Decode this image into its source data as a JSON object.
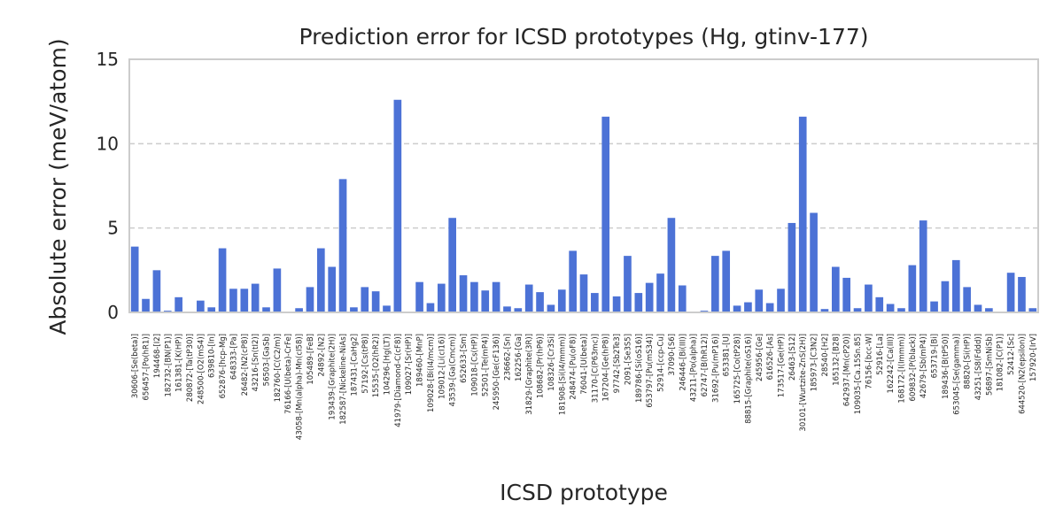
{
  "chart_data": {
    "type": "bar",
    "title": "Prediction error for ICSD prototypes (Hg, gtinv-177)",
    "xlabel": "ICSD prototype",
    "ylabel": "Absolute error (meV/atom)",
    "ylim": [
      0,
      15
    ],
    "yticks": [
      0,
      5,
      10,
      15
    ],
    "grid": "y-dashed",
    "bar_color": "#4c72d6",
    "categories": [
      "30606-[Se(beta)]",
      "656457-[Po(hR1)]",
      "194468-[I2]",
      "182732-[BN(P1)]",
      "161381-[K(HP)]",
      "280872-[Ta(tP30)]",
      "248500-[O2(mS4)]",
      "639810-[In]",
      "652876-[hcp-Mg]",
      "648333-[Pa]",
      "26482-[N2(cP8)]",
      "43216-[Sn(tI2)]",
      "56503-[GaSb]",
      "182760-[C(C2/m)]",
      "76166-[U(beta)-CrFe]",
      "43058-[Mn(alpha)-Mn(cI58)]",
      "105489-[FeB]",
      "24892-[N2]",
      "193439-[Graphite(2H)]",
      "182587-[Nickeline-NiAs]",
      "187431-[CaHg2]",
      "57192-[Cs(tP8)]",
      "15535-[O2(hR2)]",
      "104296-[Hg(LT)]",
      "41979-[Diamond-C(cF8)]",
      "109027-[Sr(HP)]",
      "189460-[MnP]",
      "109028-[Bi(I4/mcm)]",
      "109012-[Li(cI16)]",
      "43539-[Ga(Cmcm)]",
      "652633-[Sm]",
      "109018-[Cs(HP)]",
      "52501-[Te(mP4)]",
      "245950-[Ge(cF136)]",
      "236662-[Sn]",
      "162256-[Ga]",
      "31829-[Graphite(3R)]",
      "108682-[Pr(hP6)]",
      "108326-[Cr3Si]",
      "181908-[Si(I4/mmm)]",
      "248474-[Pu(oF8)]",
      "76041-[U(beta)]",
      "31170-[C(P63mc)]",
      "167204-[Ge(hP8)]",
      "97742-[Sb2Te3]",
      "2091-[Se3S5]",
      "189786-[Si(oS16)]",
      "653797-[Pu(mS34)]",
      "52914-[ccp-Cu]",
      "37090-[S6]",
      "246446-[Bi(III)]",
      "43211-[Po(alpha)]",
      "62747-[B(hR12)]",
      "31692-[Pu(mP16)]",
      "653381-[U]",
      "165725-[Co(tP28)]",
      "88815-[Graphite(oS16)]",
      "245956-[Ge]",
      "616526-[As]",
      "173517-[Ge(HP)]",
      "26463-[S12]",
      "30101-[Wurtzite-ZnS(2H)]",
      "185973-[C3N2]",
      "28540-[H2]",
      "165132-[B28]",
      "642937-[Mn(cP20)]",
      "109035-[Ca.15Sn.85]",
      "76156-[bcc-W]",
      "52916-[La]",
      "162242-[Ca(III)]",
      "168172-[I(Immm)]",
      "609832-[P(black)]",
      "42679-[Sb(mP4)]",
      "653719-[Bi]",
      "189436-[B(tP50)]",
      "653045-[Se(gamma)]",
      "88820-[Si(HP)]",
      "43251-[S8(Fddd)]",
      "56897-[SmNiSb]",
      "181082-[C(P1)]",
      "52412-[Sc]",
      "644520-[N2(epsilon)]",
      "157920-[IrV]"
    ],
    "values": [
      3.9,
      0.8,
      2.5,
      0.1,
      0.9,
      0.05,
      0.7,
      0.3,
      3.8,
      1.4,
      1.4,
      1.7,
      0.3,
      2.6,
      0.05,
      0.25,
      1.5,
      3.8,
      2.7,
      7.9,
      0.3,
      1.5,
      1.25,
      0.4,
      12.6,
      0.05,
      1.8,
      0.55,
      1.7,
      5.6,
      2.2,
      1.8,
      1.3,
      1.8,
      0.35,
      0.25,
      1.65,
      1.2,
      0.45,
      1.35,
      3.65,
      2.25,
      1.15,
      11.6,
      0.95,
      3.35,
      1.15,
      1.75,
      2.3,
      5.6,
      1.6,
      0.05,
      0.1,
      3.35,
      3.65,
      0.4,
      0.6,
      1.35,
      0.55,
      1.4,
      5.3,
      11.6,
      5.9,
      0.2,
      2.7,
      2.05,
      0.25,
      1.65,
      0.9,
      0.5,
      0.25,
      2.8,
      5.45,
      0.65,
      1.85,
      3.1,
      1.5,
      0.45,
      0.25,
      0.05,
      2.35,
      2.1,
      0.25
    ]
  }
}
